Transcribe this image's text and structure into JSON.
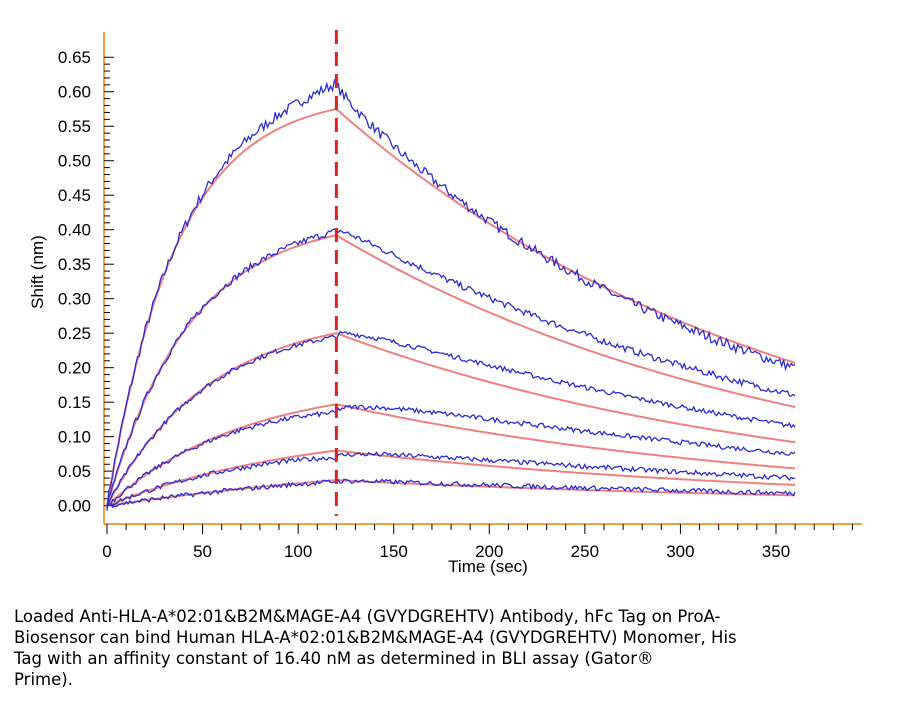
{
  "chart_data": {
    "type": "line",
    "xlabel": "Time (sec)",
    "ylabel": "Shift (nm)",
    "xlim": [
      0,
      395
    ],
    "ylim": [
      -0.015,
      0.675
    ],
    "x_ticks": [
      "0",
      "50",
      "100",
      "150",
      "200",
      "250",
      "300",
      "350"
    ],
    "y_ticks": [
      "0.00",
      "0.05",
      "0.10",
      "0.15",
      "0.20",
      "0.25",
      "0.30",
      "0.35",
      "0.40",
      "0.45",
      "0.50",
      "0.55",
      "0.60",
      "0.65"
    ],
    "dissociation_start_sec": 120,
    "association_end_time_sec": 120,
    "end_time_sec": 360,
    "measured_color": "#2b2bd6",
    "fit_color": "#f08080",
    "marker_color": "#dd2222",
    "series": [
      {
        "peak_fit": 0.575,
        "peak_measured": 0.612,
        "end_fit": 0.207,
        "end_measured": 0.2
      },
      {
        "peak_fit": 0.392,
        "peak_measured": 0.398,
        "end_fit": 0.143,
        "end_measured": 0.16
      },
      {
        "peak_fit": 0.25,
        "peak_measured": 0.245,
        "end_fit": 0.092,
        "end_measured": 0.115
      },
      {
        "peak_fit": 0.147,
        "peak_measured": 0.135,
        "end_fit": 0.054,
        "end_measured": 0.075
      },
      {
        "peak_fit": 0.08,
        "peak_measured": 0.07,
        "end_fit": 0.03,
        "end_measured": 0.04
      },
      {
        "peak_fit": 0.037,
        "peak_measured": 0.035,
        "end_fit": 0.015,
        "end_measured": 0.018
      }
    ]
  },
  "caption": {
    "line1": "Loaded Anti-HLA-A*02:01&B2M&MAGE-A4 (GVYDGREHTV) Antibody, hFc Tag on ProA-",
    "line2": "Biosensor can bind Human HLA-A*02:01&B2M&MAGE-A4 (GVYDGREHTV) Monomer, His",
    "line3": "Tag with an affinity constant of 16.40 nM as determined in BLI assay (Gator®",
    "line4": "Prime)."
  }
}
